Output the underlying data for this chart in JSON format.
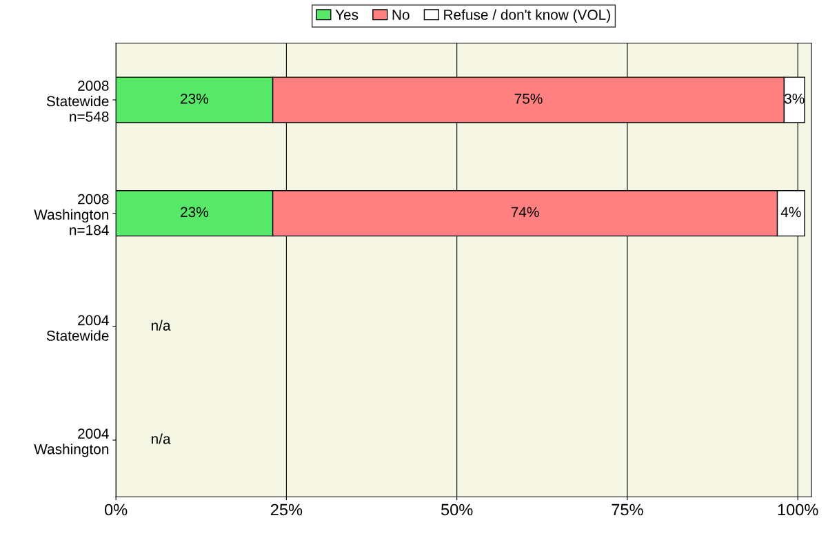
{
  "chart_data": {
    "type": "bar",
    "orientation": "horizontal",
    "stacked": true,
    "categories": [
      "2008\nStatewide\nn=548",
      "2008\nWashington\nn=184",
      "2004\nStatewide",
      "2004\nWashington"
    ],
    "series": [
      {
        "name": "Yes",
        "color": "#58e868",
        "values": [
          23,
          23,
          null,
          null
        ],
        "value_labels": [
          "23%",
          "23%",
          null,
          null
        ]
      },
      {
        "name": "No",
        "color": "#ff8080",
        "values": [
          75,
          74,
          null,
          null
        ],
        "value_labels": [
          "75%",
          "74%",
          null,
          null
        ]
      },
      {
        "name": "Refuse / don't know (VOL)",
        "color": "#ffffff",
        "values": [
          3,
          4,
          null,
          null
        ],
        "value_labels": [
          "3%",
          "4%",
          null,
          null
        ]
      }
    ],
    "xlim": [
      0,
      102
    ],
    "xticks": [
      {
        "value": 0,
        "label": "0%"
      },
      {
        "value": 25,
        "label": "25%"
      },
      {
        "value": 50,
        "label": "50%"
      },
      {
        "value": 75,
        "label": "75%"
      },
      {
        "value": 100,
        "label": "100%"
      }
    ],
    "grid": "x",
    "legend": "top",
    "annotations": [
      "n/a",
      "n/a"
    ]
  }
}
